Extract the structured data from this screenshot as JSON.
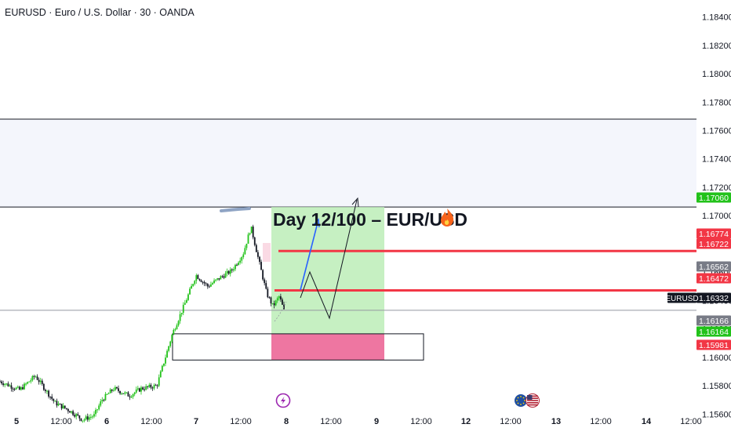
{
  "header": {
    "title": "EURUSD · Euro / U.S. Dollar · 30 · OANDA"
  },
  "overlay": {
    "headline": "Day 12/100 – EUR/USD",
    "headline_icon": "fire-icon",
    "event_icon": "lightning-icon",
    "flag_icons": [
      "eu-flag-icon",
      "us-flag-icon"
    ]
  },
  "colors": {
    "up": "#089981",
    "green_candle": "#22c21a",
    "down": "#131722",
    "target_zone": "#c6f0c2",
    "stop_zone": "#ee76a1",
    "resistance_zone": "#f4f6fc",
    "red_line": "#f23645",
    "blue_arrow": "#2962ff",
    "green_label": "#22c21a",
    "red_label": "#f23645",
    "gray_label": "#787b86",
    "price_label": "#131722"
  },
  "chart_data": {
    "type": "candlestick",
    "symbol": "EURUSD",
    "interval": "30",
    "source": "OANDA",
    "ylim": [
      1.1548,
      1.1852
    ],
    "y_ticks": [
      "1.18400",
      "1.18200",
      "1.18000",
      "1.17800",
      "1.17600",
      "1.17400",
      "1.17200",
      "1.17000",
      "1.16800",
      "1.16600",
      "1.16400",
      "1.16200",
      "1.16000",
      "1.15800",
      "1.15600"
    ],
    "x_ticks": [
      "5",
      "12:00",
      "6",
      "12:00",
      "7",
      "12:00",
      "8",
      "12:00",
      "9",
      "12:00",
      "12",
      "12:00",
      "13",
      "12:00",
      "14",
      "12:00"
    ],
    "price_path": [
      {
        "t": 0.0,
        "p": 1.1583
      },
      {
        "t": 2.5,
        "p": 1.1577
      },
      {
        "t": 4.5,
        "p": 1.1587
      },
      {
        "t": 7.0,
        "p": 1.1568
      },
      {
        "t": 9.0,
        "p": 1.1562
      },
      {
        "t": 10.5,
        "p": 1.1556
      },
      {
        "t": 12.0,
        "p": 1.1559
      },
      {
        "t": 13.0,
        "p": 1.157
      },
      {
        "t": 14.5,
        "p": 1.1578
      },
      {
        "t": 16.5,
        "p": 1.1573
      },
      {
        "t": 18.0,
        "p": 1.1578
      },
      {
        "t": 20.0,
        "p": 1.158
      },
      {
        "t": 22.0,
        "p": 1.1617
      },
      {
        "t": 23.5,
        "p": 1.1637
      },
      {
        "t": 25.0,
        "p": 1.1658
      },
      {
        "t": 26.5,
        "p": 1.165
      },
      {
        "t": 28.0,
        "p": 1.1656
      },
      {
        "t": 29.5,
        "p": 1.1661
      },
      {
        "t": 31.0,
        "p": 1.1673
      },
      {
        "t": 32.0,
        "p": 1.1692
      },
      {
        "t": 33.0,
        "p": 1.1668
      },
      {
        "t": 34.0,
        "p": 1.1645
      },
      {
        "t": 34.8,
        "p": 1.1636
      },
      {
        "t": 35.6,
        "p": 1.1643
      },
      {
        "t": 36.2,
        "p": 1.1633
      }
    ],
    "levels": {
      "resistance_zone": [
        1.1706,
        1.1768
      ],
      "red_line_upper": 1.1675,
      "red_line_lower": 1.16472,
      "current_price": 1.16332,
      "long_position": {
        "entry": 1.16166,
        "target": 1.1706,
        "stop": 1.15981
      },
      "support_box": [
        1.15981,
        1.16166
      ]
    },
    "price_labels": [
      {
        "text": "1.17060",
        "price": 1.1706,
        "color": "#22c21a"
      },
      {
        "text": "1.16774",
        "price": 1.16774,
        "color": "#f23645"
      },
      {
        "text": "1.16722",
        "price": 1.16722,
        "color": "#f23645"
      },
      {
        "text": "1.16562",
        "price": 1.16562,
        "color": "#787b86"
      },
      {
        "text": "1.16472",
        "price": 1.16472,
        "color": "#f23645"
      },
      {
        "text": "1.16332",
        "price": 1.16332,
        "color": "#131722",
        "tag": "EURUSD"
      },
      {
        "text": "1.16166",
        "price": 1.16166,
        "color": "#787b86"
      },
      {
        "text": "1.16164",
        "price": 1.16164,
        "color": "#22c21a"
      },
      {
        "text": "1.15981",
        "price": 1.15981,
        "color": "#f23645"
      }
    ]
  }
}
